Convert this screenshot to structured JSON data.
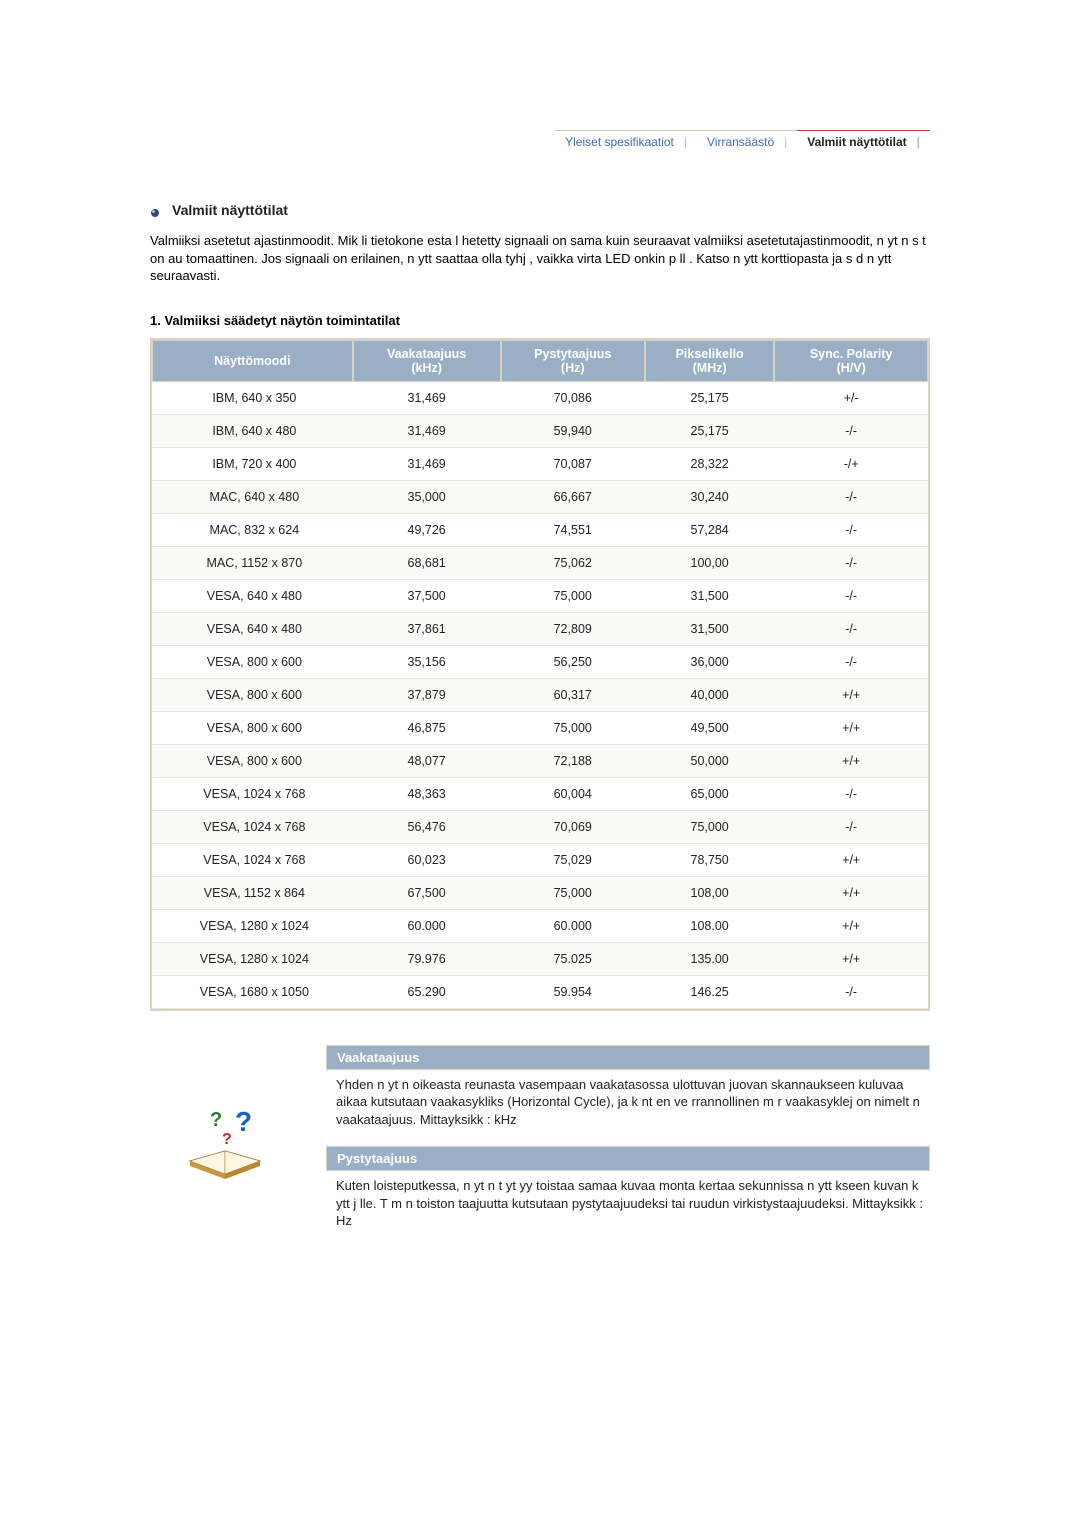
{
  "tabs": {
    "t0": "Yleiset spesifikaatiot",
    "t1": "Virransäästö",
    "t2": "Valmiit näyttötilat"
  },
  "section_title": "Valmiit näyttötilat",
  "intro": "Valmiiksi asetetut ajastinmoodit. Mik li tietokone esta l hetetty signaali on sama kuin seuraavat valmiiksi asetetutajastinmoodit, n yt n s  t  on au     tomaattinen. Jos signaali on erilainen, n ytt saattaa olla tyhj , vaikka virta LED onkin p  ll . Katso n ytt korttiopasta ja s  d  n ytt seuraavasti.",
  "subheading": "1. Valmiiksi säädetyt näytön toimintatilat",
  "columns": {
    "c0a": "Näyttömoodi",
    "c1a": "Vaakataajuus",
    "c1b": "(kHz)",
    "c2a": "Pystytaajuus",
    "c2b": "(Hz)",
    "c3a": "Pikselikello",
    "c3b": "(MHz)",
    "c4a": "Sync. Polarity",
    "c4b": "(H/V)"
  },
  "rows": [
    [
      "IBM, 640 x 350",
      "31,469",
      "70,086",
      "25,175",
      "+/-"
    ],
    [
      "IBM, 640 x 480",
      "31,469",
      "59,940",
      "25,175",
      "-/-"
    ],
    [
      "IBM, 720 x 400",
      "31,469",
      "70,087",
      "28,322",
      "-/+"
    ],
    [
      "MAC, 640 x 480",
      "35,000",
      "66,667",
      "30,240",
      "-/-"
    ],
    [
      "MAC, 832 x 624",
      "49,726",
      "74,551",
      "57,284",
      "-/-"
    ],
    [
      "MAC, 1152 x 870",
      "68,681",
      "75,062",
      "100,00",
      "-/-"
    ],
    [
      "VESA, 640 x 480",
      "37,500",
      "75,000",
      "31,500",
      "-/-"
    ],
    [
      "VESA, 640 x 480",
      "37,861",
      "72,809",
      "31,500",
      "-/-"
    ],
    [
      "VESA, 800 x 600",
      "35,156",
      "56,250",
      "36,000",
      "-/-"
    ],
    [
      "VESA, 800 x 600",
      "37,879",
      "60,317",
      "40,000",
      "+/+"
    ],
    [
      "VESA, 800 x 600",
      "46,875",
      "75,000",
      "49,500",
      "+/+"
    ],
    [
      "VESA, 800 x 600",
      "48,077",
      "72,188",
      "50,000",
      "+/+"
    ],
    [
      "VESA, 1024 x 768",
      "48,363",
      "60,004",
      "65,000",
      "-/-"
    ],
    [
      "VESA, 1024 x 768",
      "56,476",
      "70,069",
      "75,000",
      "-/-"
    ],
    [
      "VESA, 1024 x 768",
      "60,023",
      "75,029",
      "78,750",
      "+/+"
    ],
    [
      "VESA, 1152 x 864",
      "67,500",
      "75,000",
      "108,00",
      "+/+"
    ],
    [
      "VESA, 1280 x 1024",
      "60.000",
      "60.000",
      "108.00",
      "+/+"
    ],
    [
      "VESA, 1280 x 1024",
      "79.976",
      "75.025",
      "135.00",
      "+/+"
    ],
    [
      "VESA, 1680 x 1050",
      "65.290",
      "59.954",
      "146.25",
      "-/-"
    ]
  ],
  "defs": {
    "h0": "Vaakataajuus",
    "b0": "Yhden n yt n oikeasta reunasta vasempaan vaakatasossa ulottuvan juovan skannaukseen kuluvaa aikaa kutsutaan vaakasykliks (Horizontal Cycle), ja k  nt en ve   rrannollinen m  r   vaakasyklej  on nimelt  n vaakataajuus. Mittayksikk  : kHz",
    "h1": "Pystytaajuus",
    "b1": "Kuten loisteputkessa, n yt n t yt   yy toistaa samaa kuvaa monta kertaa sekunnissa n ytt  kseen    kuvan k ytt j lle. T m n toiston taajuutta kutsutaan pystytaajuudeksi tai ruudun virkistystaajuudeksi. Mittayksikk  : Hz"
  },
  "style": {
    "header_bg": "#9aafc6",
    "header_fg": "#ffffff",
    "border": "#d6d2c4",
    "accent_active": "#c0392b",
    "link": "#4169b0"
  }
}
